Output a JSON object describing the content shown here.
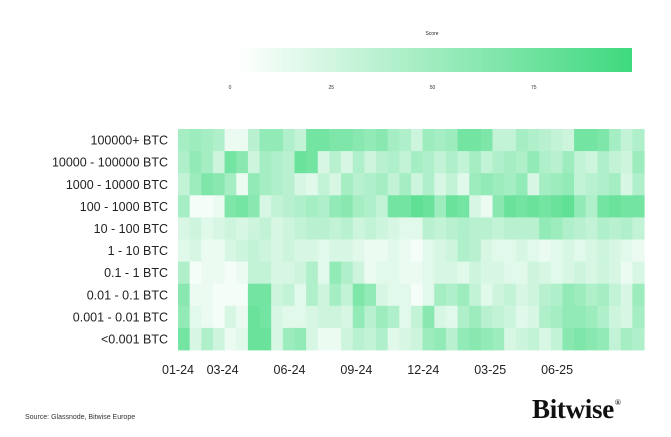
{
  "chart_data": {
    "type": "heatmap",
    "title": "",
    "legend": {
      "title": "Score",
      "ticks": [
        0,
        25,
        50,
        75
      ],
      "range": [
        0,
        100
      ],
      "color_min": "#ffffff",
      "color_max": "#38d87a",
      "placement": "top"
    },
    "x_ticks": [
      "01-24",
      "03-24",
      "06-24",
      "09-24",
      "12-24",
      "03-25",
      "06-25"
    ],
    "rows": [
      {
        "label": "100000+ BTC",
        "values": [
          45,
          50,
          45,
          40,
          10,
          10,
          35,
          55,
          55,
          40,
          30,
          70,
          70,
          65,
          65,
          60,
          55,
          60,
          45,
          40,
          25,
          50,
          45,
          50,
          70,
          70,
          65,
          30,
          30,
          45,
          40,
          35,
          30,
          25,
          70,
          70,
          65,
          45,
          30,
          40
        ]
      },
      {
        "label": "10000 - 100000 BTC",
        "values": [
          40,
          55,
          45,
          25,
          70,
          60,
          25,
          45,
          40,
          35,
          75,
          70,
          20,
          35,
          20,
          40,
          25,
          35,
          40,
          30,
          45,
          40,
          30,
          40,
          30,
          45,
          30,
          40,
          45,
          40,
          55,
          40,
          35,
          50,
          30,
          25,
          40,
          30,
          25,
          50
        ]
      },
      {
        "label": "1000 - 10000 BTC",
        "values": [
          30,
          50,
          65,
          60,
          45,
          10,
          55,
          45,
          40,
          35,
          20,
          15,
          30,
          20,
          45,
          35,
          40,
          45,
          30,
          45,
          25,
          40,
          20,
          30,
          15,
          50,
          55,
          50,
          45,
          55,
          20,
          45,
          50,
          55,
          30,
          35,
          40,
          45,
          20,
          40
        ]
      },
      {
        "label": "100 - 1000 BTC",
        "values": [
          45,
          5,
          5,
          10,
          65,
          70,
          60,
          20,
          30,
          35,
          40,
          45,
          40,
          55,
          60,
          45,
          40,
          30,
          70,
          70,
          80,
          75,
          50,
          75,
          70,
          20,
          10,
          60,
          75,
          70,
          75,
          70,
          75,
          80,
          55,
          40,
          70,
          75,
          70,
          70
        ]
      },
      {
        "label": "10 - 100 BTC",
        "values": [
          20,
          25,
          15,
          20,
          25,
          20,
          25,
          30,
          20,
          25,
          30,
          35,
          35,
          30,
          35,
          25,
          30,
          25,
          20,
          15,
          15,
          35,
          30,
          35,
          40,
          35,
          35,
          30,
          35,
          35,
          35,
          55,
          50,
          40,
          35,
          30,
          40,
          35,
          40,
          30
        ]
      },
      {
        "label": "1 - 10 BTC",
        "values": [
          15,
          20,
          10,
          10,
          20,
          25,
          30,
          25,
          20,
          25,
          20,
          20,
          15,
          20,
          20,
          15,
          10,
          10,
          15,
          10,
          5,
          15,
          20,
          25,
          40,
          35,
          20,
          15,
          15,
          20,
          15,
          10,
          15,
          20,
          15,
          20,
          25,
          20,
          15,
          10
        ]
      },
      {
        "label": "0.1 - 1 BTC",
        "values": [
          40,
          5,
          10,
          10,
          5,
          10,
          30,
          30,
          20,
          20,
          25,
          40,
          15,
          55,
          40,
          25,
          10,
          15,
          15,
          10,
          10,
          15,
          20,
          20,
          15,
          25,
          20,
          20,
          15,
          15,
          25,
          20,
          15,
          20,
          25,
          20,
          25,
          20,
          10,
          20
        ]
      },
      {
        "label": "0.01 - 0.1 BTC",
        "values": [
          60,
          10,
          10,
          5,
          5,
          5,
          70,
          70,
          25,
          30,
          15,
          40,
          25,
          45,
          30,
          65,
          55,
          20,
          15,
          15,
          5,
          15,
          45,
          40,
          50,
          30,
          15,
          25,
          30,
          20,
          25,
          35,
          40,
          55,
          50,
          40,
          45,
          30,
          20,
          50
        ]
      },
      {
        "label": "0.001 - 0.01 BTC",
        "values": [
          55,
          15,
          10,
          5,
          20,
          10,
          75,
          70,
          20,
          15,
          15,
          20,
          25,
          25,
          20,
          55,
          35,
          50,
          40,
          15,
          30,
          60,
          20,
          15,
          40,
          50,
          35,
          30,
          25,
          15,
          20,
          40,
          45,
          55,
          55,
          50,
          40,
          25,
          20,
          45
        ]
      },
      {
        "label": "<0.001 BTC",
        "values": [
          70,
          20,
          40,
          25,
          10,
          15,
          75,
          75,
          20,
          50,
          55,
          20,
          10,
          10,
          25,
          35,
          30,
          40,
          15,
          20,
          25,
          50,
          55,
          35,
          55,
          60,
          55,
          50,
          20,
          25,
          30,
          20,
          30,
          60,
          65,
          60,
          55,
          30,
          45,
          40
        ]
      }
    ]
  },
  "footer": {
    "source": "Source: Glassnode, Bitwise Europe",
    "logo": "Bitwise",
    "logo_mark": "®"
  }
}
